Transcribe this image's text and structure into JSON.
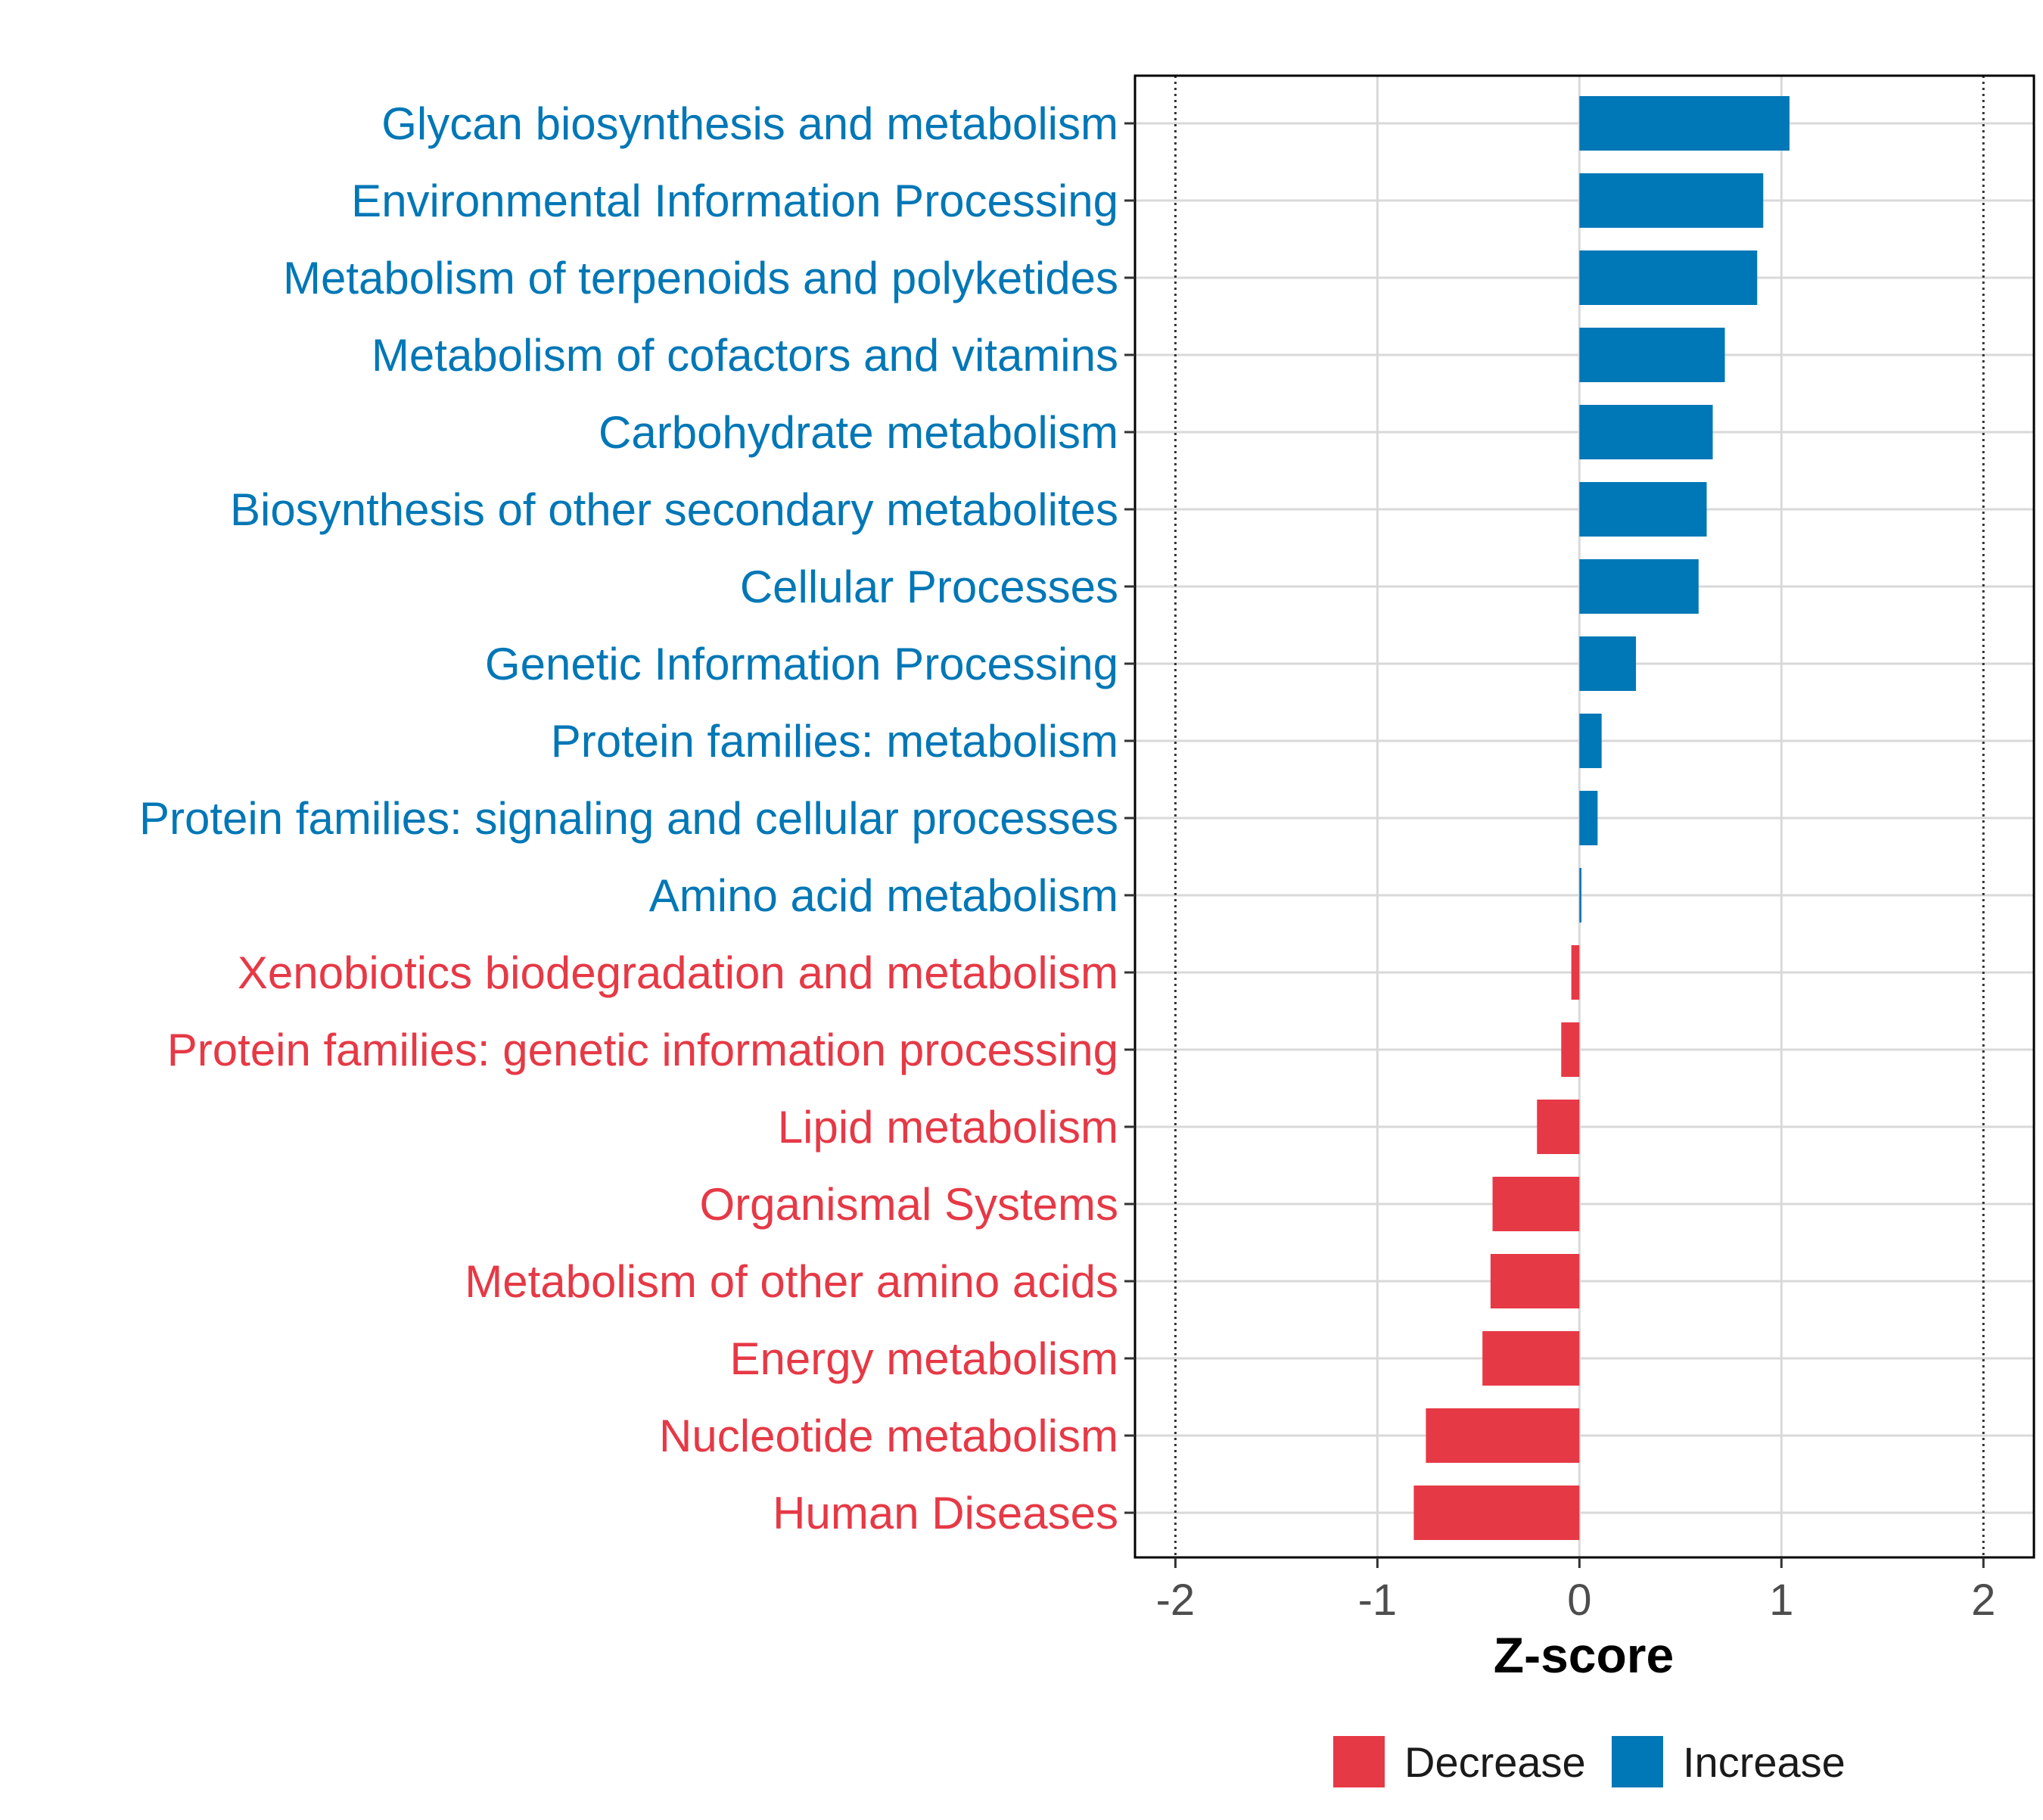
{
  "chart_data": {
    "type": "bar",
    "orientation": "horizontal",
    "xlabel": "Z-score",
    "ylabel": "",
    "xlim": [
      -2.2,
      2.25
    ],
    "xticks": [
      -2,
      -1,
      0,
      1,
      2
    ],
    "xtick_labels": [
      "-2",
      "-1",
      "0",
      "1",
      "2"
    ],
    "reference_lines": [
      -2,
      2
    ],
    "grid": true,
    "legend_position": "bottom",
    "categories": [
      "Glycan biosynthesis and metabolism",
      "Environmental Information Processing",
      "Metabolism of terpenoids and polyketides",
      "Metabolism of cofactors and vitamins",
      "Carbohydrate metabolism",
      "Biosynthesis of other secondary metabolites",
      "Cellular Processes",
      "Genetic Information Processing",
      "Protein families: metabolism",
      "Protein families: signaling and cellular processes",
      "Amino acid metabolism",
      "Xenobiotics biodegradation and metabolism",
      "Protein families: genetic information processing",
      "Lipid metabolism",
      "Organismal Systems",
      "Metabolism of other amino acids",
      "Energy metabolism",
      "Nucleotide metabolism",
      "Human Diseases"
    ],
    "values": [
      1.04,
      0.91,
      0.88,
      0.72,
      0.66,
      0.63,
      0.59,
      0.28,
      0.11,
      0.09,
      0.01,
      -0.04,
      -0.09,
      -0.21,
      -0.43,
      -0.44,
      -0.48,
      -0.76,
      -0.82
    ],
    "groups": [
      "Increase",
      "Increase",
      "Increase",
      "Increase",
      "Increase",
      "Increase",
      "Increase",
      "Increase",
      "Increase",
      "Increase",
      "Increase",
      "Decrease",
      "Decrease",
      "Decrease",
      "Decrease",
      "Decrease",
      "Decrease",
      "Decrease",
      "Decrease"
    ],
    "legend": [
      {
        "label": "Decrease",
        "color": "#e63946"
      },
      {
        "label": "Increase",
        "color": "#0077b6"
      }
    ],
    "colors": {
      "Decrease": "#e63946",
      "Increase": "#0077b6"
    }
  }
}
